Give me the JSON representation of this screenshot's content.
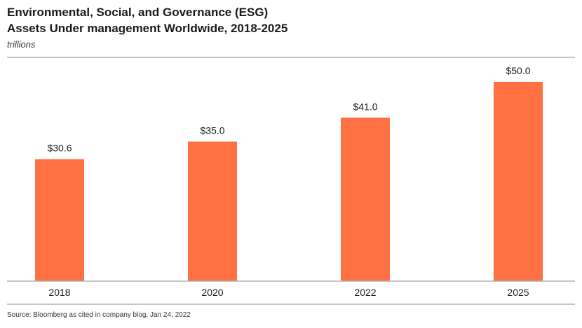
{
  "header": {
    "title_line1": "Environmental, Social, and Governance (ESG)",
    "title_line2": "Assets Under management Worldwide, 2018-2025",
    "subtitle": "trillions"
  },
  "footer": {
    "source": "Source: Bloomberg as cited in company blog, Jan 24, 2022"
  },
  "colors": {
    "bar": "#ff7043",
    "rule": "#b3b3b3",
    "text": "#1a1a1a"
  },
  "chart_data": {
    "type": "bar",
    "title": "Environmental, Social, and Governance (ESG) Assets Under management Worldwide, 2018-2025",
    "subtitle": "trillions",
    "categories": [
      "2018",
      "2020",
      "2022",
      "2025"
    ],
    "values": [
      30.6,
      35.0,
      41.0,
      50.0
    ],
    "labels": [
      "$30.6",
      "$35.0",
      "$41.0",
      "$50.0"
    ],
    "ylim": [
      0,
      55
    ],
    "grid": false,
    "legend": "none"
  }
}
